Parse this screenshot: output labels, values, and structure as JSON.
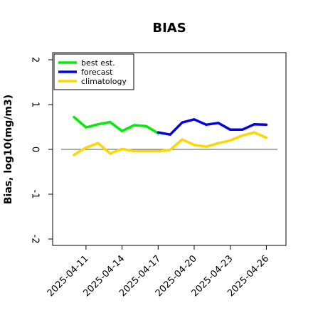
{
  "chart_data": {
    "type": "line",
    "title": "BIAS",
    "ylabel": "Bias, log10(mg/m3)",
    "ylim": [
      -2,
      2
    ],
    "yticks": [
      "2",
      "1",
      "0",
      "-1",
      "-2"
    ],
    "x_tick_labels": [
      "2025-04-11",
      "2025-04-14",
      "2025-04-17",
      "2025-04-20",
      "2025-04-23",
      "2025-04-26"
    ],
    "highlighted_tick": "2025-04-17",
    "highlight_color": "#228b22",
    "x": [
      "2025-04-10",
      "2025-04-11",
      "2025-04-12",
      "2025-04-13",
      "2025-04-14",
      "2025-04-15",
      "2025-04-16",
      "2025-04-17",
      "2025-04-18",
      "2025-04-19",
      "2025-04-20",
      "2025-04-21",
      "2025-04-22",
      "2025-04-23",
      "2025-04-24",
      "2025-04-25",
      "2025-04-26"
    ],
    "legend_position": "top-left",
    "grid": false,
    "series": [
      {
        "name": "best est.",
        "color": "#00ee00",
        "values": [
          0.72,
          0.49,
          0.56,
          0.61,
          0.41,
          0.54,
          0.52,
          0.36,
          null,
          null,
          null,
          null,
          null,
          null,
          null,
          null,
          null
        ]
      },
      {
        "name": "forecast",
        "color": "#0000ee",
        "values": [
          null,
          null,
          null,
          null,
          null,
          null,
          null,
          0.38,
          0.33,
          0.6,
          0.67,
          0.55,
          0.59,
          0.44,
          0.44,
          0.56,
          0.55
        ]
      },
      {
        "name": "climatology",
        "color": "#ffd700",
        "values": [
          -0.12,
          0.04,
          0.14,
          -0.09,
          0.01,
          -0.04,
          -0.04,
          -0.04,
          -0.01,
          0.22,
          0.1,
          0.06,
          0.14,
          0.2,
          0.31,
          0.38,
          0.26
        ]
      }
    ]
  }
}
